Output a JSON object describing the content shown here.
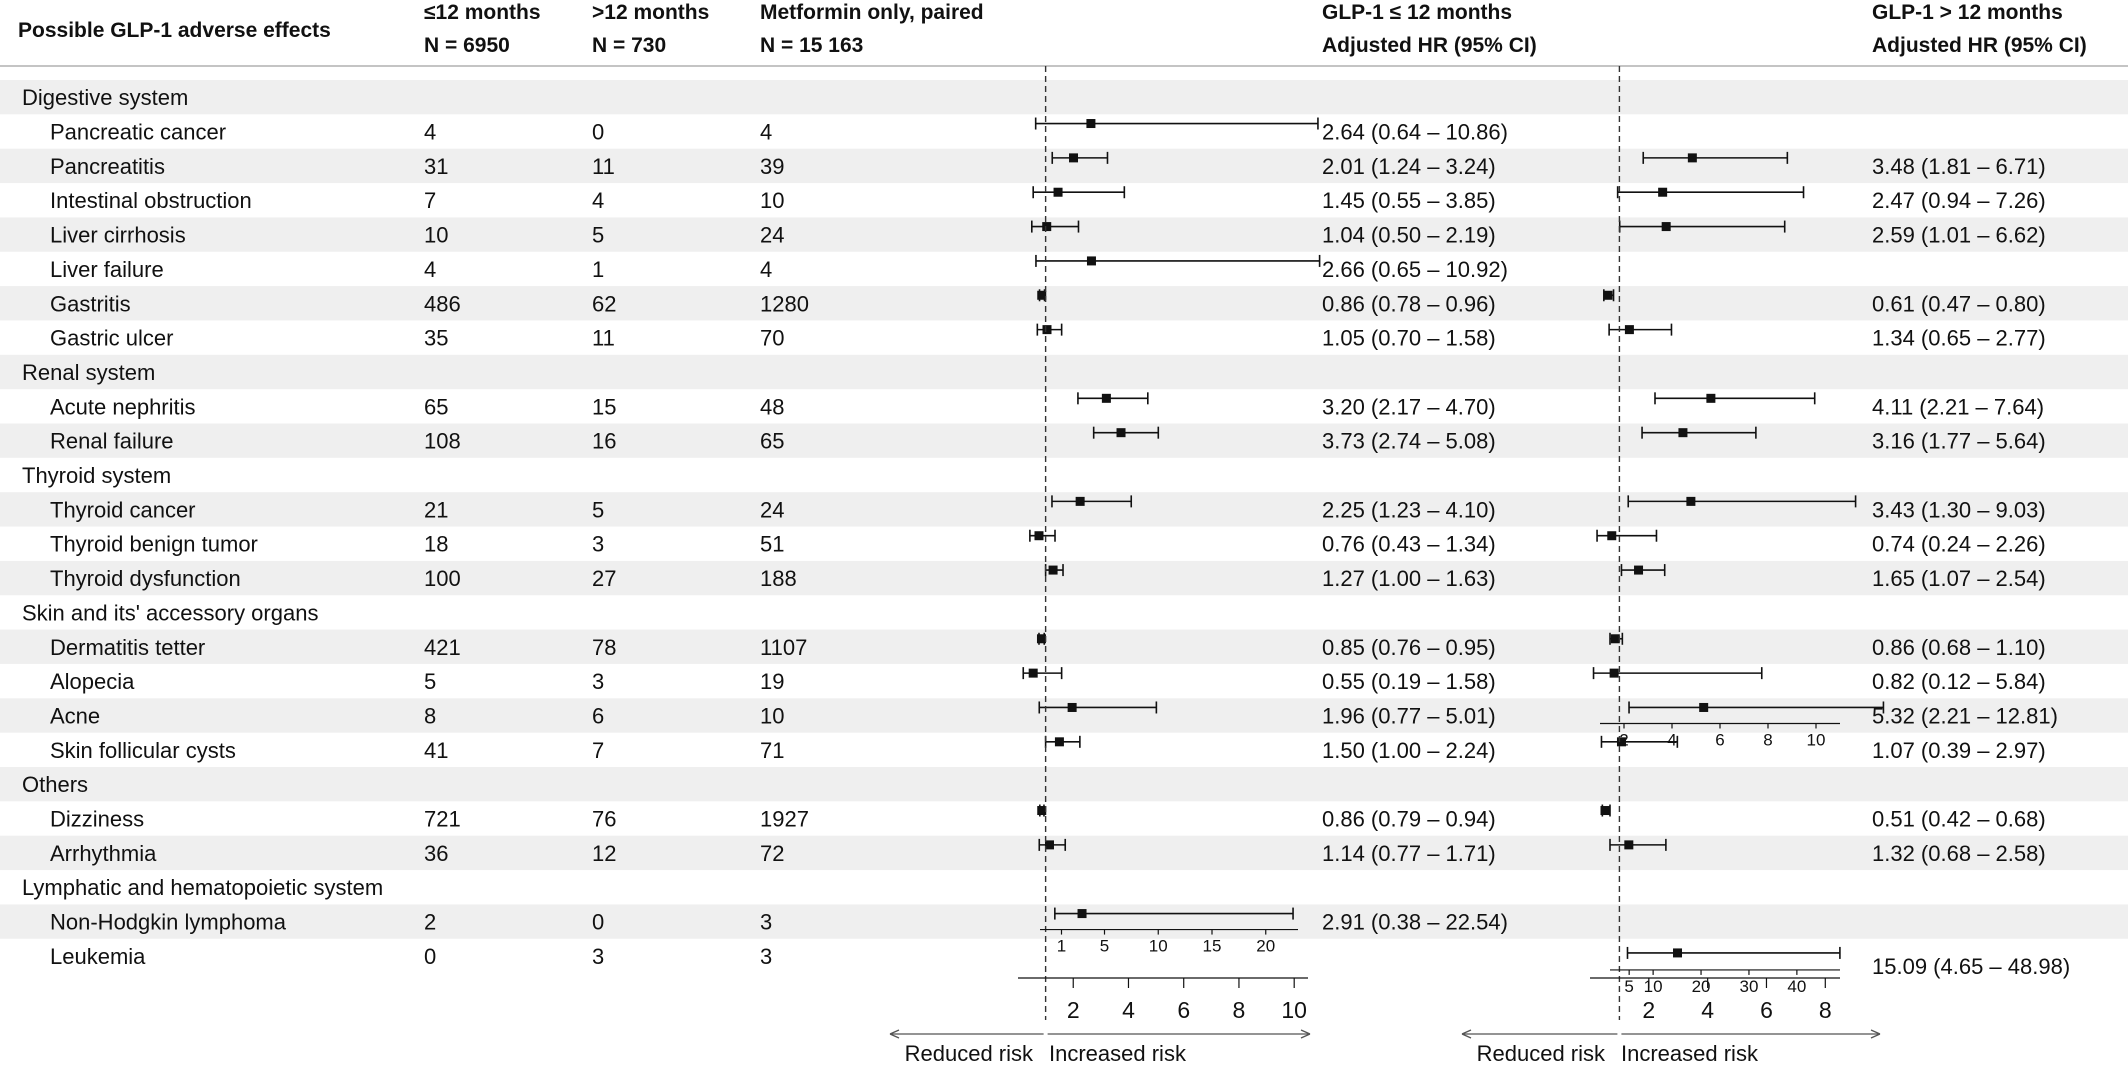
{
  "chart_data": {
    "type": "forest",
    "header": {
      "col_effect": "Possible GLP-1 adverse effects",
      "col_le12": "≤12 months",
      "col_le12_n": "N = 6950",
      "col_gt12": ">12 months",
      "col_gt12_n": "N = 730",
      "col_met": "Metformin only, paired",
      "col_met_n": "N = 15 163",
      "col_hr1": "GLP-1 ≤ 12 months",
      "col_hr1_sub": "Adjusted HR (95% CI)",
      "col_hr2": "GLP-1 > 12 months",
      "col_hr2_sub": "Adjusted HR (95% CI)"
    },
    "rows": [
      {
        "type": "group",
        "label": "Digestive system",
        "shaded": true
      },
      {
        "type": "item",
        "label": "Pancreatic cancer",
        "le12": "4",
        "gt12": "0",
        "met": "4",
        "hr1": [
          2.64,
          0.64,
          10.86
        ],
        "hr1_text": "2.64 (0.64 – 10.86)",
        "hr2": null,
        "hr2_text": "",
        "shaded": false
      },
      {
        "type": "item",
        "label": "Pancreatitis",
        "le12": "31",
        "gt12": "11",
        "met": "39",
        "hr1": [
          2.01,
          1.24,
          3.24
        ],
        "hr1_text": "2.01 (1.24 – 3.24)",
        "hr2": [
          3.48,
          1.81,
          6.71
        ],
        "hr2_text": "3.48 (1.81 – 6.71)",
        "shaded": true
      },
      {
        "type": "item",
        "label": "Intestinal obstruction",
        "le12": "7",
        "gt12": "4",
        "met": "10",
        "hr1": [
          1.45,
          0.55,
          3.85
        ],
        "hr1_text": "1.45 (0.55 – 3.85)",
        "hr2": [
          2.47,
          0.94,
          7.26
        ],
        "hr2_text": "2.47 (0.94 – 7.26)",
        "shaded": false
      },
      {
        "type": "item",
        "label": "Liver cirrhosis",
        "le12": "10",
        "gt12": "5",
        "met": "24",
        "hr1": [
          1.04,
          0.5,
          2.19
        ],
        "hr1_text": "1.04 (0.50 – 2.19)",
        "hr2": [
          2.59,
          1.01,
          6.62
        ],
        "hr2_text": "2.59 (1.01 – 6.62)",
        "shaded": true
      },
      {
        "type": "item",
        "label": "Liver failure",
        "le12": "4",
        "gt12": "1",
        "met": "4",
        "hr1": [
          2.66,
          0.65,
          10.92
        ],
        "hr1_text": "2.66 (0.65 – 10.92)",
        "hr2": null,
        "hr2_text": "",
        "shaded": false
      },
      {
        "type": "item",
        "label": "Gastritis",
        "le12": "486",
        "gt12": "62",
        "met": "1280",
        "hr1": [
          0.86,
          0.78,
          0.96
        ],
        "hr1_text": "0.86 (0.78 – 0.96)",
        "hr2": [
          0.61,
          0.47,
          0.8
        ],
        "hr2_text": "0.61 (0.47 – 0.80)",
        "shaded": true
      },
      {
        "type": "item",
        "label": "Gastric ulcer",
        "le12": "35",
        "gt12": "11",
        "met": "70",
        "hr1": [
          1.05,
          0.7,
          1.58
        ],
        "hr1_text": "1.05 (0.70 – 1.58)",
        "hr2": [
          1.34,
          0.65,
          2.77
        ],
        "hr2_text": "1.34 (0.65 – 2.77)",
        "shaded": false
      },
      {
        "type": "group",
        "label": "Renal system",
        "shaded": true
      },
      {
        "type": "item",
        "label": "Acute nephritis",
        "le12": "65",
        "gt12": "15",
        "met": "48",
        "hr1": [
          3.2,
          2.17,
          4.7
        ],
        "hr1_text": "3.20 (2.17 – 4.70)",
        "hr2": [
          4.11,
          2.21,
          7.64
        ],
        "hr2_text": "4.11 (2.21 – 7.64)",
        "shaded": false
      },
      {
        "type": "item",
        "label": "Renal failure",
        "le12": "108",
        "gt12": "16",
        "met": "65",
        "hr1": [
          3.73,
          2.74,
          5.08
        ],
        "hr1_text": "3.73 (2.74 – 5.08)",
        "hr2": [
          3.16,
          1.77,
          5.64
        ],
        "hr2_text": "3.16 (1.77 – 5.64)",
        "shaded": true
      },
      {
        "type": "group",
        "label": "Thyroid system",
        "shaded": false
      },
      {
        "type": "item",
        "label": "Thyroid cancer",
        "le12": "21",
        "gt12": "5",
        "met": "24",
        "hr1": [
          2.25,
          1.23,
          4.1
        ],
        "hr1_text": "2.25 (1.23 – 4.10)",
        "hr2": [
          3.43,
          1.3,
          9.03
        ],
        "hr2_text": "3.43 (1.30 – 9.03)",
        "shaded": true
      },
      {
        "type": "item",
        "label": "Thyroid benign tumor",
        "le12": "18",
        "gt12": "3",
        "met": "51",
        "hr1": [
          0.76,
          0.43,
          1.34
        ],
        "hr1_text": "0.76 (0.43 – 1.34)",
        "hr2": [
          0.74,
          0.24,
          2.26
        ],
        "hr2_text": "0.74 (0.24 – 2.26)",
        "shaded": false
      },
      {
        "type": "item",
        "label": "Thyroid dysfunction",
        "le12": "100",
        "gt12": "27",
        "met": "188",
        "hr1": [
          1.27,
          1.0,
          1.63
        ],
        "hr1_text": "1.27 (1.00 – 1.63)",
        "hr2": [
          1.65,
          1.07,
          2.54
        ],
        "hr2_text": "1.65 (1.07 – 2.54)",
        "shaded": true
      },
      {
        "type": "group",
        "label": "Skin and its' accessory organs",
        "shaded": false
      },
      {
        "type": "item",
        "label": "Dermatitis tetter",
        "le12": "421",
        "gt12": "78",
        "met": "1107",
        "hr1": [
          0.85,
          0.76,
          0.95
        ],
        "hr1_text": "0.85 (0.76 – 0.95)",
        "hr2": [
          0.86,
          0.68,
          1.1
        ],
        "hr2_text": "0.86 (0.68 – 1.10)",
        "shaded": true
      },
      {
        "type": "item",
        "label": "Alopecia",
        "le12": "5",
        "gt12": "3",
        "met": "19",
        "hr1": [
          0.55,
          0.19,
          1.58
        ],
        "hr1_text": "0.55 (0.19 – 1.58)",
        "hr2": [
          0.82,
          0.12,
          5.84
        ],
        "hr2_text": "0.82 (0.12 – 5.84)",
        "shaded": false
      },
      {
        "type": "item",
        "label": "Acne",
        "le12": "8",
        "gt12": "6",
        "met": "10",
        "hr1": [
          1.96,
          0.77,
          5.01
        ],
        "hr1_text": "1.96 (0.77 – 5.01)",
        "hr2": [
          5.32,
          2.21,
          12.81
        ],
        "hr2_text": "5.32 (2.21 – 12.81)",
        "hr2_axis": "inset",
        "shaded": true
      },
      {
        "type": "item",
        "label": "Skin follicular cysts",
        "le12": "41",
        "gt12": "7",
        "met": "71",
        "hr1": [
          1.5,
          1.0,
          2.24
        ],
        "hr1_text": "1.50 (1.00 – 2.24)",
        "hr2": [
          1.07,
          0.39,
          2.97
        ],
        "hr2_text": "1.07 (0.39 – 2.97)",
        "shaded": false
      },
      {
        "type": "group",
        "label": "Others",
        "shaded": true
      },
      {
        "type": "item",
        "label": "Dizziness",
        "le12": "721",
        "gt12": "76",
        "met": "1927",
        "hr1": [
          0.86,
          0.79,
          0.94
        ],
        "hr1_text": "0.86 (0.79 – 0.94)",
        "hr2": [
          0.51,
          0.42,
          0.68
        ],
        "hr2_text": "0.51 (0.42 – 0.68)",
        "shaded": false
      },
      {
        "type": "item",
        "label": "Arrhythmia",
        "le12": "36",
        "gt12": "12",
        "met": "72",
        "hr1": [
          1.14,
          0.77,
          1.71
        ],
        "hr1_text": "1.14 (0.77 – 1.71)",
        "hr2": [
          1.32,
          0.68,
          2.58
        ],
        "hr2_text": "1.32 (0.68 – 2.58)",
        "shaded": true
      },
      {
        "type": "group",
        "label": "Lymphatic and hematopoietic system",
        "shaded": false
      },
      {
        "type": "item",
        "label": "Non-Hodgkin lymphoma",
        "le12": "2",
        "gt12": "0",
        "met": "3",
        "hr1": [
          2.91,
          0.38,
          22.54
        ],
        "hr1_text": "2.91 (0.38 – 22.54)",
        "hr1_axis": "inset",
        "hr2": null,
        "hr2_text": "",
        "shaded": true
      },
      {
        "type": "item",
        "label": "Leukemia",
        "le12": "0",
        "gt12": "3",
        "met": "3",
        "hr1": null,
        "hr1_text": "",
        "hr2": [
          15.09,
          4.65,
          48.98
        ],
        "hr2_text": "15.09 (4.65 – 48.98)",
        "hr2_axis": "inset",
        "shaded": false
      }
    ],
    "axis1": {
      "ticks": [
        2,
        4,
        6,
        8,
        10
      ],
      "reference": 1,
      "xlim": [
        0,
        10.5
      ]
    },
    "axis1_inset": {
      "ticks": [
        1,
        5,
        10,
        15,
        20
      ],
      "xlim": [
        -1,
        23
      ]
    },
    "axis2": {
      "ticks": [
        2,
        4,
        6,
        8
      ],
      "reference": 1,
      "xlim": [
        0,
        8.5
      ]
    },
    "axis2_inset_acne": {
      "ticks": [
        2,
        4,
        6,
        8,
        10
      ],
      "xlim": [
        1,
        11
      ]
    },
    "axis2_inset_leukemia": {
      "ticks": [
        5,
        10,
        20,
        30,
        40
      ],
      "xlim": [
        1,
        49
      ]
    },
    "direction": {
      "left": "Reduced risk",
      "right": "Increased risk"
    }
  }
}
